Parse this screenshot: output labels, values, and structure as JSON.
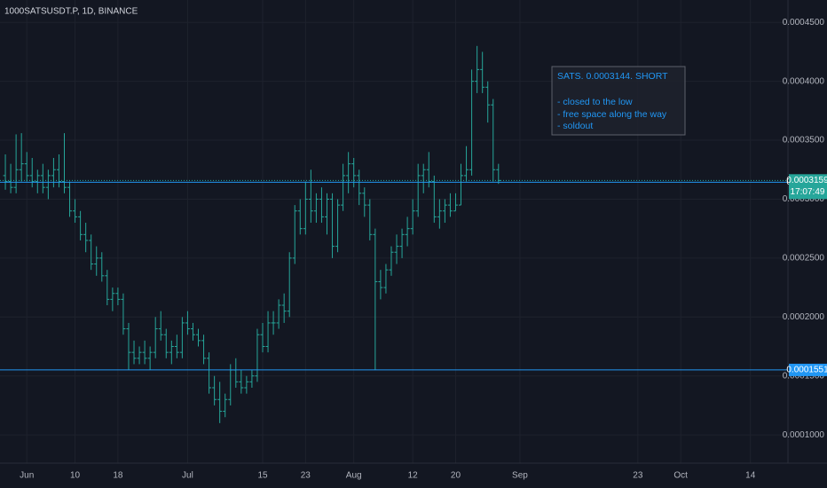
{
  "chart_data": {
    "type": "ohlc",
    "title": "1000SATSUSDT.P, 1D, BINANCE",
    "x": [
      "May 28",
      "May 29",
      "May 30",
      "May 31",
      "Jun 1",
      "Jun 2",
      "Jun 3",
      "Jun 4",
      "Jun 5",
      "Jun 6",
      "Jun 7",
      "Jun 8",
      "Jun 9",
      "Jun 10",
      "Jun 11",
      "Jun 12",
      "Jun 13",
      "Jun 14",
      "Jun 15",
      "Jun 16",
      "Jun 17",
      "Jun 18",
      "Jun 19",
      "Jun 20",
      "Jun 21",
      "Jun 22",
      "Jun 23",
      "Jun 24",
      "Jun 25",
      "Jun 26",
      "Jun 27",
      "Jun 28",
      "Jun 29",
      "Jun 30",
      "Jul 1",
      "Jul 2",
      "Jul 3",
      "Jul 4",
      "Jul 5",
      "Jul 6",
      "Jul 7",
      "Jul 8",
      "Jul 9",
      "Jul 10",
      "Jul 11",
      "Jul 12",
      "Jul 13",
      "Jul 14",
      "Jul 15",
      "Jul 16",
      "Jul 17",
      "Jul 18",
      "Jul 19",
      "Jul 20",
      "Jul 21",
      "Jul 22",
      "Jul 23",
      "Jul 24",
      "Jul 25",
      "Jul 26",
      "Jul 27",
      "Jul 28",
      "Jul 29",
      "Jul 30",
      "Jul 31",
      "Aug 1",
      "Aug 2",
      "Aug 3",
      "Aug 4",
      "Aug 5",
      "Aug 6",
      "Aug 7",
      "Aug 8",
      "Aug 9",
      "Aug 10",
      "Aug 11",
      "Aug 12",
      "Aug 13",
      "Aug 14",
      "Aug 15",
      "Aug 16",
      "Aug 17",
      "Aug 18",
      "Aug 19",
      "Aug 20",
      "Aug 21",
      "Aug 22",
      "Aug 23",
      "Aug 24",
      "Aug 25",
      "Aug 26",
      "Aug 27",
      "Aug 28"
    ],
    "series": [
      {
        "color": "#26a69a",
        "open": [
          0.00032,
          0.000315,
          0.00031,
          0.000325,
          0.00033,
          0.00032,
          0.000315,
          0.00032,
          0.00031,
          0.00032,
          0.000325,
          0.000315,
          0.00031,
          0.00029,
          0.000285,
          0.00027,
          0.000265,
          0.000245,
          0.00025,
          0.000235,
          0.000215,
          0.00022,
          0.000215,
          0.00019,
          0.00017,
          0.000165,
          0.00017,
          0.000165,
          0.00017,
          0.00019,
          0.000185,
          0.00017,
          0.000175,
          0.00017,
          0.000195,
          0.00019,
          0.000185,
          0.00018,
          0.000165,
          0.00014,
          0.00013,
          0.00012,
          0.00013,
          0.000155,
          0.000145,
          0.00014,
          0.000145,
          0.00015,
          0.000185,
          0.000175,
          0.000195,
          0.000195,
          0.00021,
          0.000205,
          0.00025,
          0.00029,
          0.000275,
          0.0003,
          0.00029,
          0.0003,
          0.000285,
          0.0003,
          0.00026,
          0.000295,
          0.00032,
          0.00033,
          0.00032,
          0.000305,
          0.000295,
          0.00027,
          0.00023,
          0.000225,
          0.00024,
          0.000255,
          0.00026,
          0.00027,
          0.000275,
          0.00029,
          0.00032,
          0.000325,
          0.000315,
          0.000285,
          0.00029,
          0.000295,
          0.00029,
          0.000295,
          0.00032,
          0.000325,
          0.0004,
          0.00041,
          0.000395,
          0.00038,
          0.000325
        ],
        "high": [
          0.000338,
          0.00033,
          0.000355,
          0.000356,
          0.00034,
          0.000335,
          0.000325,
          0.00033,
          0.000325,
          0.000335,
          0.000338,
          0.000356,
          0.000315,
          0.0003,
          0.00029,
          0.00028,
          0.00027,
          0.00026,
          0.000255,
          0.00024,
          0.000225,
          0.000225,
          0.00022,
          0.000195,
          0.00018,
          0.000175,
          0.00018,
          0.000175,
          0.0002,
          0.000205,
          0.00019,
          0.00018,
          0.000185,
          0.0002,
          0.000205,
          0.000195,
          0.00019,
          0.000185,
          0.00017,
          0.00015,
          0.000145,
          0.000135,
          0.00016,
          0.000165,
          0.000155,
          0.00015,
          0.000155,
          0.00019,
          0.000195,
          0.000205,
          0.000205,
          0.000215,
          0.00022,
          0.000255,
          0.000295,
          0.0003,
          0.000315,
          0.000325,
          0.000305,
          0.00031,
          0.000305,
          0.000305,
          0.0003,
          0.00033,
          0.00034,
          0.000335,
          0.000325,
          0.00031,
          0.0003,
          0.000275,
          0.00024,
          0.000245,
          0.00026,
          0.00027,
          0.000275,
          0.000285,
          0.0003,
          0.00033,
          0.00033,
          0.00034,
          0.00032,
          0.0003,
          0.0003,
          0.000305,
          0.000305,
          0.00033,
          0.000345,
          0.00041,
          0.00043,
          0.000425,
          0.0004,
          0.000385,
          0.00033
        ],
        "low": [
          0.000308,
          0.000305,
          0.000305,
          0.000315,
          0.000315,
          0.00031,
          0.000305,
          0.000305,
          0.0003,
          0.00031,
          0.00031,
          0.000305,
          0.000285,
          0.00028,
          0.000265,
          0.000255,
          0.00024,
          0.000235,
          0.00023,
          0.00021,
          0.000205,
          0.00021,
          0.000185,
          0.000155,
          0.00016,
          0.00016,
          0.00016,
          0.000155,
          0.000165,
          0.00018,
          0.000165,
          0.00016,
          0.000165,
          0.000165,
          0.000185,
          0.00018,
          0.000175,
          0.00016,
          0.000135,
          0.000125,
          0.00011,
          0.000115,
          0.000125,
          0.00014,
          0.000135,
          0.000135,
          0.00014,
          0.000145,
          0.00017,
          0.00017,
          0.000185,
          0.00019,
          0.000195,
          0.0002,
          0.000245,
          0.00027,
          0.00027,
          0.00028,
          0.00028,
          0.00028,
          0.00027,
          0.00025,
          0.000255,
          0.00029,
          0.000305,
          0.00031,
          0.000295,
          0.000285,
          0.000265,
          0.000155,
          0.000215,
          0.00022,
          0.000235,
          0.000245,
          0.00025,
          0.00026,
          0.00027,
          0.000285,
          0.000305,
          0.00031,
          0.00028,
          0.000275,
          0.00028,
          0.000285,
          0.00029,
          0.000295,
          0.000315,
          0.00032,
          0.00039,
          0.00039,
          0.000365,
          0.000315,
          0.000313
        ],
        "close": [
          0.000315,
          0.00031,
          0.000325,
          0.00033,
          0.00032,
          0.000315,
          0.00032,
          0.00031,
          0.00032,
          0.000325,
          0.000315,
          0.00031,
          0.00029,
          0.000285,
          0.00027,
          0.000265,
          0.000245,
          0.00025,
          0.000235,
          0.000215,
          0.00022,
          0.000215,
          0.00019,
          0.00017,
          0.000165,
          0.00017,
          0.000165,
          0.00017,
          0.00019,
          0.000185,
          0.00017,
          0.000175,
          0.00017,
          0.000195,
          0.00019,
          0.000185,
          0.00018,
          0.000165,
          0.00014,
          0.00013,
          0.00012,
          0.00013,
          0.000155,
          0.000145,
          0.00014,
          0.000145,
          0.00015,
          0.000185,
          0.000175,
          0.000195,
          0.000195,
          0.00021,
          0.000205,
          0.00025,
          0.00029,
          0.000275,
          0.0003,
          0.00029,
          0.0003,
          0.000285,
          0.0003,
          0.00026,
          0.000295,
          0.00032,
          0.00033,
          0.00032,
          0.000305,
          0.000295,
          0.00027,
          0.00023,
          0.000225,
          0.00024,
          0.000255,
          0.00026,
          0.00027,
          0.000275,
          0.00029,
          0.00032,
          0.000325,
          0.000315,
          0.000285,
          0.00029,
          0.000295,
          0.00029,
          0.000295,
          0.00032,
          0.000325,
          0.0004,
          0.00041,
          0.000395,
          0.00038,
          0.000325,
          0.0003159
        ]
      }
    ],
    "xlim": [
      "May 27",
      "Oct 21"
    ],
    "xticks": [
      {
        "value": "Jun 1",
        "label": "Jun"
      },
      {
        "value": "Jun 10",
        "label": "10"
      },
      {
        "value": "Jun 18",
        "label": "18"
      },
      {
        "value": "Jul 1",
        "label": "Jul"
      },
      {
        "value": "Jul 15",
        "label": "15"
      },
      {
        "value": "Jul 23",
        "label": "23"
      },
      {
        "value": "Aug 1",
        "label": "Aug"
      },
      {
        "value": "Aug 12",
        "label": "12"
      },
      {
        "value": "Aug 20",
        "label": "20"
      },
      {
        "value": "Sep 1",
        "label": "Sep"
      },
      {
        "value": "Sep 23",
        "label": "23"
      },
      {
        "value": "Oct 1",
        "label": "Oct"
      },
      {
        "value": "Oct 14",
        "label": "14"
      }
    ],
    "ylim": [
      7.6e-05,
      0.000469
    ],
    "yticks": [
      {
        "value": 0.00045,
        "label": "0.0004500"
      },
      {
        "value": 0.0004,
        "label": "0.0004000"
      },
      {
        "value": 0.00035,
        "label": "0.0003500"
      },
      {
        "value": 0.0003,
        "label": "0.0003000"
      },
      {
        "value": 0.00025,
        "label": "0.0002500"
      },
      {
        "value": 0.0002,
        "label": "0.0002000"
      },
      {
        "value": 0.00015,
        "label": "0.0001500"
      },
      {
        "value": 0.0001,
        "label": "0.0001000"
      }
    ],
    "grid": true,
    "hlines": [
      {
        "value": 0.0003144,
        "color": "#2196f3"
      },
      {
        "value": 0.0001551,
        "color": "#2196f3"
      }
    ],
    "last_price": {
      "value": 0.0003159,
      "countdown": "17:07:49",
      "color": "#26a69a"
    },
    "annotation": {
      "lines": [
        "SATS. 0.0003144. SHORT",
        "- closed to the low",
        "- free space along the way",
        "- soldout"
      ]
    }
  }
}
